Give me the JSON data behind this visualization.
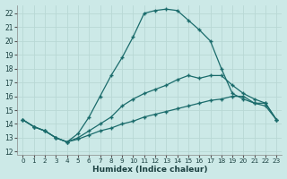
{
  "xlabel": "Humidex (Indice chaleur)",
  "bg_color": "#cce9e7",
  "grid_color": "#b8d8d5",
  "line_color": "#1a6b6b",
  "xlim": [
    -0.5,
    23.5
  ],
  "ylim": [
    11.8,
    22.6
  ],
  "yticks": [
    12,
    13,
    14,
    15,
    16,
    17,
    18,
    19,
    20,
    21,
    22
  ],
  "xticks": [
    0,
    1,
    2,
    3,
    4,
    5,
    6,
    7,
    8,
    9,
    10,
    11,
    12,
    13,
    14,
    15,
    16,
    17,
    18,
    19,
    20,
    21,
    22,
    23
  ],
  "line_upper_x": [
    0,
    1,
    2,
    3,
    4,
    5,
    6,
    7,
    8,
    9,
    10,
    11,
    12,
    13,
    14,
    15,
    16,
    17,
    18,
    19,
    20,
    21,
    22,
    23
  ],
  "line_upper_y": [
    14.3,
    13.8,
    13.5,
    13.0,
    12.7,
    13.3,
    14.5,
    16.0,
    17.5,
    18.8,
    20.3,
    22.0,
    22.2,
    22.3,
    22.2,
    21.5,
    20.8,
    20.0,
    18.0,
    16.2,
    15.8,
    15.5,
    15.5,
    14.3
  ],
  "line_mid_x": [
    0,
    1,
    2,
    3,
    4,
    5,
    6,
    7,
    8,
    9,
    10,
    11,
    12,
    13,
    14,
    15,
    16,
    17,
    18,
    19,
    20,
    21,
    22,
    23
  ],
  "line_mid_y": [
    14.3,
    13.8,
    13.5,
    13.0,
    12.7,
    13.0,
    13.5,
    14.0,
    14.5,
    15.3,
    15.8,
    16.2,
    16.5,
    16.8,
    17.2,
    17.5,
    17.3,
    17.5,
    17.5,
    16.8,
    16.2,
    15.8,
    15.5,
    14.3
  ],
  "line_low_x": [
    0,
    1,
    2,
    3,
    4,
    5,
    6,
    7,
    8,
    9,
    10,
    11,
    12,
    13,
    14,
    15,
    16,
    17,
    18,
    19,
    20,
    21,
    22,
    23
  ],
  "line_low_y": [
    14.3,
    13.8,
    13.5,
    13.0,
    12.7,
    12.9,
    13.2,
    13.5,
    13.7,
    14.0,
    14.2,
    14.5,
    14.7,
    14.9,
    15.1,
    15.3,
    15.5,
    15.7,
    15.8,
    16.0,
    16.0,
    15.5,
    15.3,
    14.3
  ]
}
